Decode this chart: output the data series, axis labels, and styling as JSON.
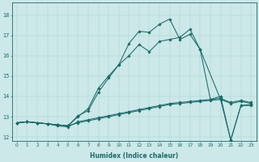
{
  "xlabel": "Humidex (Indice chaleur)",
  "bg_color": "#cce8e8",
  "line_color": "#1a6b6b",
  "xlim": [
    -0.5,
    23.5
  ],
  "ylim": [
    11.8,
    18.6
  ],
  "xticks": [
    0,
    1,
    2,
    3,
    4,
    5,
    6,
    7,
    8,
    9,
    10,
    11,
    12,
    13,
    14,
    15,
    16,
    17,
    18,
    19,
    20,
    21,
    22,
    23
  ],
  "yticks": [
    12,
    13,
    14,
    15,
    16,
    17,
    18
  ],
  "series": [
    {
      "x": [
        0,
        1,
        2,
        3,
        4,
        5,
        6,
        7,
        8,
        9,
        10,
        11,
        12,
        13,
        14,
        15,
        16,
        17,
        18,
        19,
        20,
        21,
        22,
        23
      ],
      "y": [
        12.7,
        12.75,
        12.7,
        12.65,
        12.6,
        12.55,
        12.7,
        12.8,
        12.9,
        13.0,
        13.1,
        13.2,
        13.3,
        13.4,
        13.5,
        13.6,
        13.65,
        13.7,
        13.75,
        13.8,
        13.85,
        13.65,
        13.75,
        13.65
      ]
    },
    {
      "x": [
        0,
        1,
        2,
        3,
        4,
        5,
        6,
        7,
        8,
        9,
        10,
        11,
        12,
        13,
        14,
        15,
        16,
        17,
        18,
        19,
        20,
        21,
        22,
        23
      ],
      "y": [
        12.7,
        12.75,
        12.7,
        12.65,
        12.55,
        12.5,
        12.75,
        12.85,
        12.95,
        13.05,
        13.15,
        13.25,
        13.35,
        13.45,
        13.55,
        13.65,
        13.7,
        13.75,
        13.8,
        13.85,
        13.9,
        13.7,
        13.8,
        13.7
      ]
    },
    {
      "x": [
        0,
        1,
        2,
        3,
        4,
        5,
        6,
        7,
        8,
        9,
        10,
        11,
        12,
        13,
        14,
        15,
        16,
        17,
        18,
        20,
        21,
        22,
        23
      ],
      "y": [
        12.7,
        12.75,
        12.7,
        12.65,
        12.6,
        12.55,
        13.0,
        13.4,
        14.4,
        15.0,
        15.55,
        16.0,
        16.55,
        16.2,
        16.7,
        16.8,
        16.9,
        17.3,
        16.3,
        13.85,
        11.85,
        13.55,
        13.55
      ]
    },
    {
      "x": [
        0,
        1,
        2,
        3,
        4,
        5,
        6,
        7,
        8,
        9,
        10,
        11,
        12,
        13,
        14,
        15,
        16,
        17,
        18,
        19,
        20,
        21,
        22,
        23
      ],
      "y": [
        12.7,
        12.75,
        12.7,
        12.65,
        12.6,
        12.55,
        13.05,
        13.3,
        14.2,
        14.9,
        15.55,
        16.6,
        17.2,
        17.15,
        17.55,
        17.8,
        16.8,
        17.05,
        16.3,
        13.85,
        14.0,
        11.85,
        13.55,
        13.6
      ]
    }
  ]
}
